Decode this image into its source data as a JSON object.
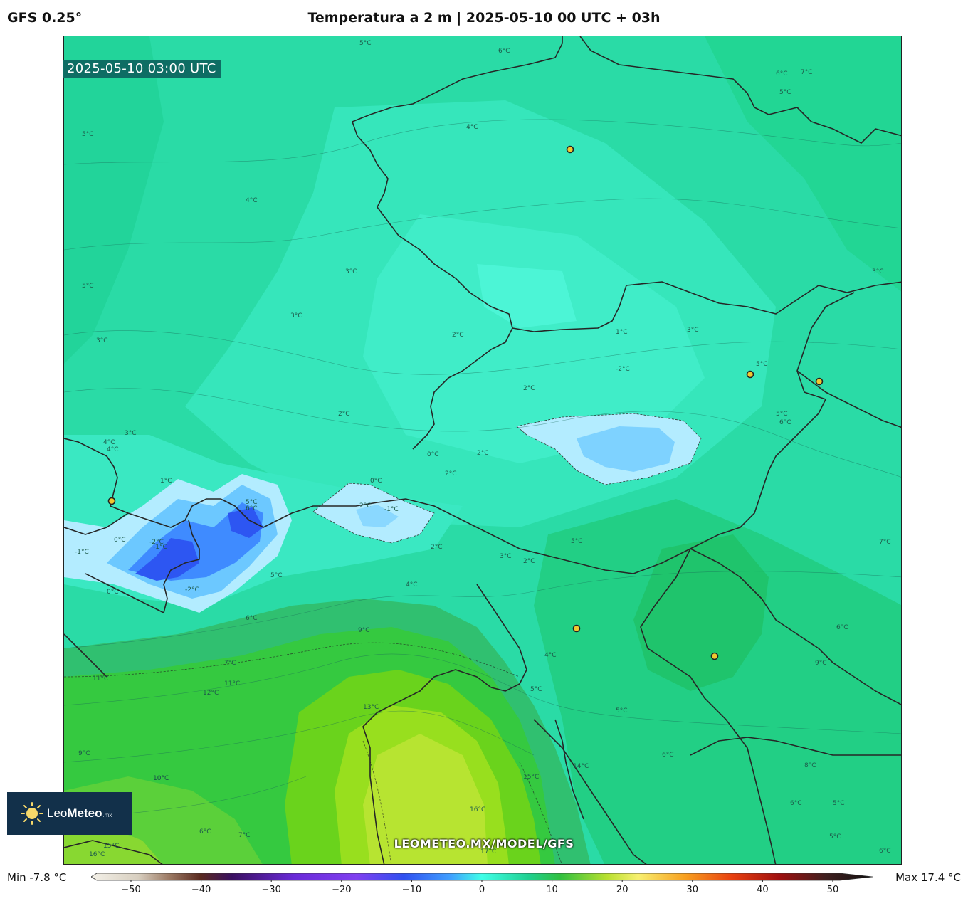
{
  "header": {
    "model": "GFS 0.25°",
    "title": "Temperatura a 2 m | 2025-05-10 00 UTC + 03h"
  },
  "map": {
    "valid_time": "2025-05-10 03:00 UTC",
    "watermark": "LEOMETEO.MX/MODEL/GFS",
    "contour_labels": [
      "5°C",
      "6°C",
      "7°C",
      "6°C",
      "5°C",
      "4°C",
      "5°C",
      "4°C",
      "3°C",
      "5°C",
      "3°C",
      "3°C",
      "2°C",
      "1°C",
      "3°C",
      "-2°C",
      "5°C",
      "2°C",
      "2°C",
      "5°C",
      "6°C",
      "3°C",
      "4°C",
      "0°C",
      "2°C",
      "2°C",
      "0°C",
      "-1°C",
      "2°C",
      "1°C",
      "3°C",
      "4°C",
      "5°C",
      "6°C",
      "-2°C",
      "-1°C",
      "0°C",
      "-1°C",
      "2°C",
      "-2°C",
      "0°C",
      "2°C",
      "3°C",
      "5°C",
      "7°C",
      "5°C",
      "4°C",
      "6°C",
      "6°C",
      "9°C",
      "7°C",
      "9°C",
      "10°C",
      "11°C",
      "12°C",
      "11°C",
      "13°C",
      "9°C",
      "10°C",
      "14°C",
      "15°C",
      "16°C",
      "17°C",
      "6°C",
      "7°C",
      "16°C",
      "15°C",
      "5°C",
      "6°C",
      "8°C",
      "5°C",
      "6°C",
      "5°C",
      "6°C",
      "4°C",
      "5°C"
    ]
  },
  "logo": {
    "brand_light": "Leo",
    "brand_bold": "Meteo",
    "tld": ".mx"
  },
  "colorbar": {
    "min_label": "Min -7.8 °C",
    "max_label": "Max 17.4 °C",
    "range": [
      -50,
      50
    ],
    "tick_labels": [
      "−50",
      "−40",
      "−30",
      "−20",
      "−10",
      "0",
      "10",
      "20",
      "30",
      "40",
      "50"
    ]
  },
  "colors": {
    "bg_main": "#28dcaa",
    "bg_light": "#3ae8be",
    "bg_lighter": "#44f0cc",
    "cold_pale": "#b0e8ff",
    "cold_light": "#6cc8ff",
    "cold_mid": "#3f8bff",
    "cold_deep": "#2d56f2",
    "warm1": "#30c070",
    "warm2": "#35c940",
    "warm3": "#6ad31c",
    "warm4": "#98df1e",
    "warm5": "#b7e431",
    "border": "#222222"
  }
}
